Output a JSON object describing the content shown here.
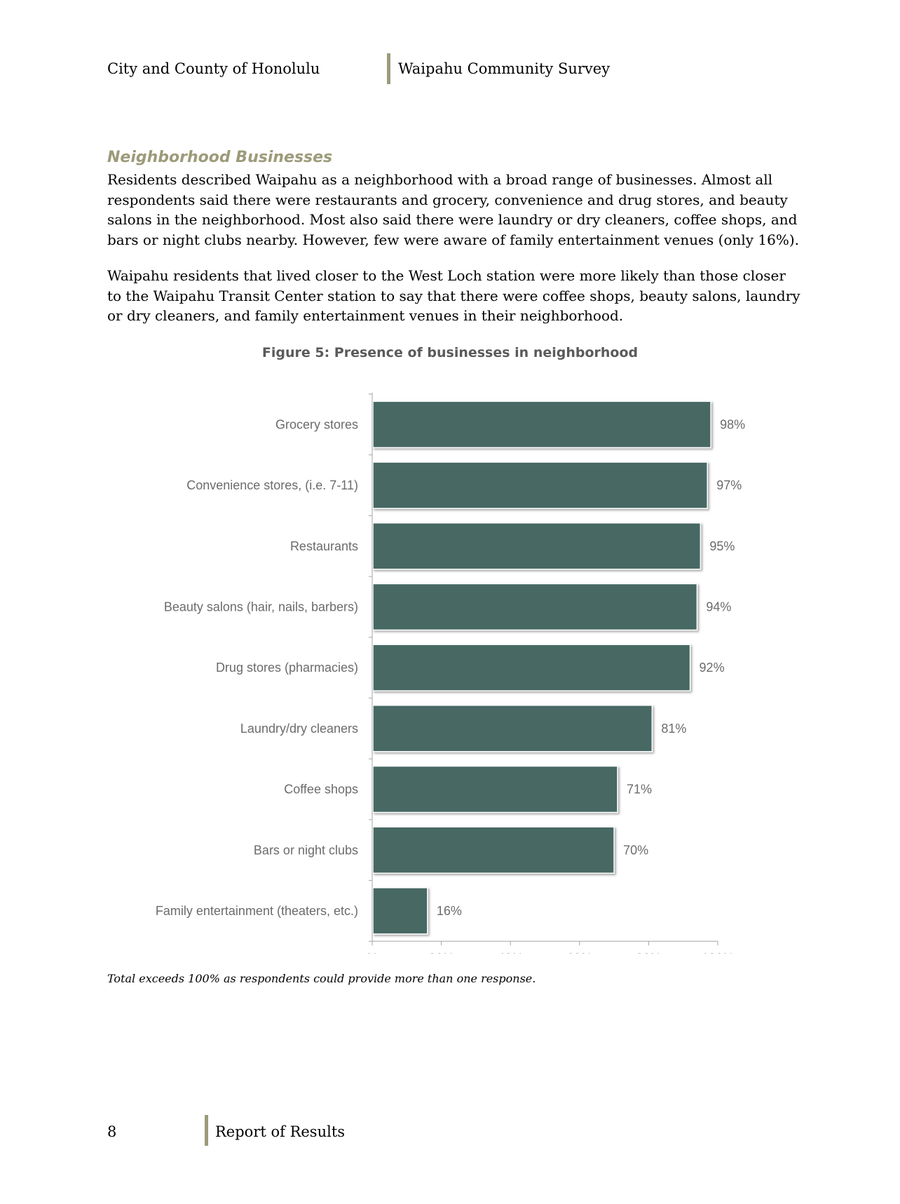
{
  "header": {
    "left": "City and County of Honolulu",
    "right": "Waipahu Community Survey"
  },
  "section": {
    "heading": "Neighborhood Businesses",
    "paragraph1": "Residents described Waipahu as a neighborhood with a broad range of businesses. Almost all respondents said there were restaurants and grocery, convenience and drug stores, and beauty salons in the neighborhood. Most also said there were laundry or dry cleaners, coffee shops, and bars or night clubs nearby. However, few were aware of family entertainment venues (only 16%).",
    "paragraph2": "Waipahu residents that lived closer to the West Loch station were more likely than those closer to the Waipahu Transit Center station to say that there were coffee shops, beauty salons, laundry or dry cleaners, and family entertainment venues in their neighborhood."
  },
  "figure": {
    "title": "Figure 5: Presence of businesses in neighborhood",
    "footnote": "Total exceeds 100% as respondents could provide more than one response."
  },
  "chart_data": {
    "type": "bar",
    "orientation": "horizontal",
    "title": "Figure 5: Presence of businesses in neighborhood",
    "categories": [
      "Grocery stores",
      "Convenience stores, (i.e. 7-11)",
      "Restaurants",
      "Beauty salons (hair, nails, barbers)",
      "Drug stores (pharmacies)",
      "Laundry/dry cleaners",
      "Coffee shops",
      "Bars or night clubs",
      "Family entertainment (theaters, etc.)"
    ],
    "values": [
      98,
      97,
      95,
      94,
      92,
      81,
      71,
      70,
      16
    ],
    "value_labels": [
      "98%",
      "97%",
      "95%",
      "94%",
      "92%",
      "81%",
      "71%",
      "70%",
      "16%"
    ],
    "xlim": [
      0,
      100
    ],
    "x_ticks": [
      "%",
      "20%",
      "40%",
      "60%",
      "80%",
      "100%"
    ],
    "xlabel": "",
    "ylabel": "",
    "grid": false,
    "bar_color": "#476864"
  },
  "footer": {
    "page_number": "8",
    "title": "Report of Results"
  }
}
